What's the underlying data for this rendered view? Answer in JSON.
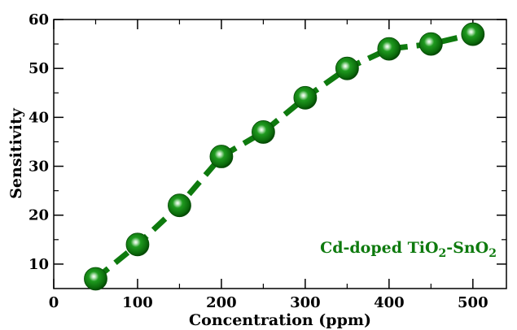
{
  "chart_data": {
    "type": "line",
    "xlabel": "Concentration (ppm)",
    "ylabel": "Sensitivity",
    "xlim": [
      0,
      540
    ],
    "ylim": [
      5,
      60
    ],
    "x_ticks": [
      0,
      100,
      200,
      300,
      400,
      500
    ],
    "y_ticks": [
      10,
      20,
      30,
      40,
      50,
      60
    ],
    "grid": false,
    "legend_position": "bottom-right",
    "series": [
      {
        "name_parts": {
          "a": "Cd-doped TiO",
          "sub1": "2",
          "b": "-SnO",
          "sub2": "2"
        },
        "color": "#0e7a0e",
        "line_style": "dashed",
        "marker": "sphere",
        "x": [
          50,
          100,
          150,
          200,
          250,
          300,
          350,
          400,
          450,
          500
        ],
        "y": [
          7,
          14,
          22,
          32,
          37,
          44,
          50,
          54,
          55,
          57
        ]
      }
    ]
  }
}
